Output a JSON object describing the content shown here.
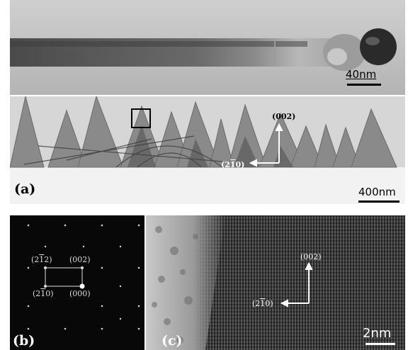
{
  "figure": {
    "panel_a_top": {
      "scale_bar": "40nm"
    },
    "panel_a": {
      "label": "(a)",
      "scale_bar": "400nm",
      "axis_up": "(002)",
      "axis_left_pre": "(2",
      "axis_left_bar": "1",
      "axis_left_post": "0)"
    },
    "panel_b": {
      "label": "(b)",
      "spot_tl_pre": "(2",
      "spot_tl_bar": "1",
      "spot_tl_post": "2)",
      "spot_tr": "(002)",
      "spot_bl_pre": "(2",
      "spot_bl_bar": "1",
      "spot_bl_post": "0)",
      "spot_br": "(000)"
    },
    "panel_c": {
      "label": "(c)",
      "scale_bar": "2nm",
      "axis_up": "(002)",
      "axis_left_pre": "(2",
      "axis_left_bar": "1",
      "axis_left_post": "0)"
    }
  }
}
